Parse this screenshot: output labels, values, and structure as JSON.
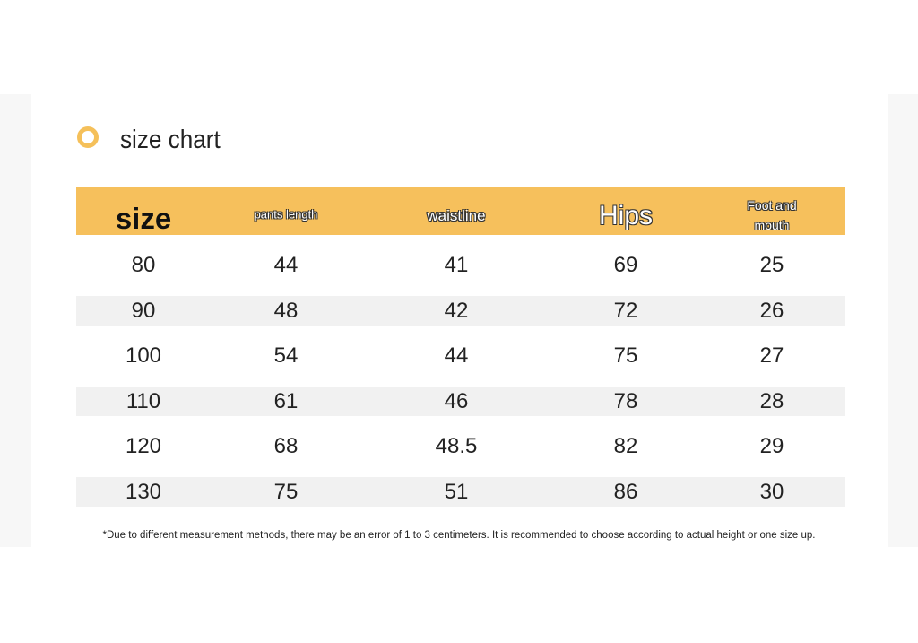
{
  "header": {
    "title": "size chart"
  },
  "table": {
    "columns": [
      "size",
      "pants length",
      "waistline",
      "Hips",
      "Foot and mouth"
    ],
    "rows": [
      [
        80,
        44,
        41,
        69,
        25
      ],
      [
        90,
        48,
        42,
        72,
        26
      ],
      [
        100,
        54,
        44,
        75,
        27
      ],
      [
        110,
        61,
        46,
        78,
        28
      ],
      [
        120,
        68,
        48.5,
        82,
        29
      ],
      [
        130,
        75,
        51,
        86,
        30
      ]
    ]
  },
  "footnote": "*Due to different measurement methods, there may be an error of 1 to 3 centimeters. It is recommended to choose according to actual height or one size up."
}
